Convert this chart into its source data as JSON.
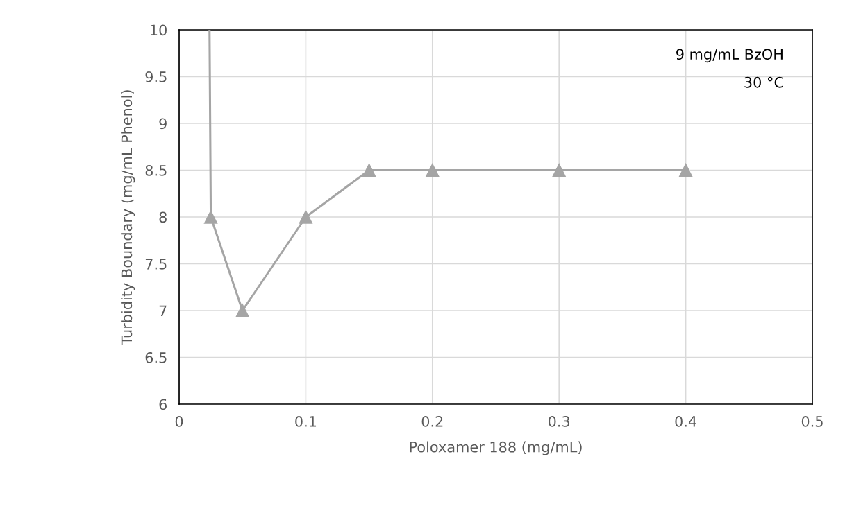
{
  "chart_data": {
    "type": "line",
    "xlabel": "Poloxamer 188 (mg/mL)",
    "ylabel": "Turbidity Boundary (mg/mL Phenol)",
    "xlim": [
      0,
      0.5
    ],
    "xticks": [
      0,
      0.1,
      0.2,
      0.3,
      0.4,
      0.5
    ],
    "ylim": [
      6,
      10
    ],
    "yticks": [
      6,
      6.5,
      7,
      7.5,
      8,
      8.5,
      9,
      9.5,
      10
    ],
    "grid": true,
    "marker": "triangle",
    "line_style": "solid",
    "series": [
      {
        "color": "#a5a5a5",
        "x": [
          0.025,
          0.05,
          0.1,
          0.15,
          0.2,
          0.3,
          0.4
        ],
        "values": [
          8,
          7,
          8,
          8.5,
          8.5,
          8.5,
          8.5
        ]
      },
      {
        "color": "#a5a5a5",
        "marker": "none",
        "x": [
          0.024,
          0.025
        ],
        "values": [
          10,
          8
        ]
      }
    ],
    "annotations": [
      "9 mg/mL BzOH",
      "30 °C"
    ]
  }
}
